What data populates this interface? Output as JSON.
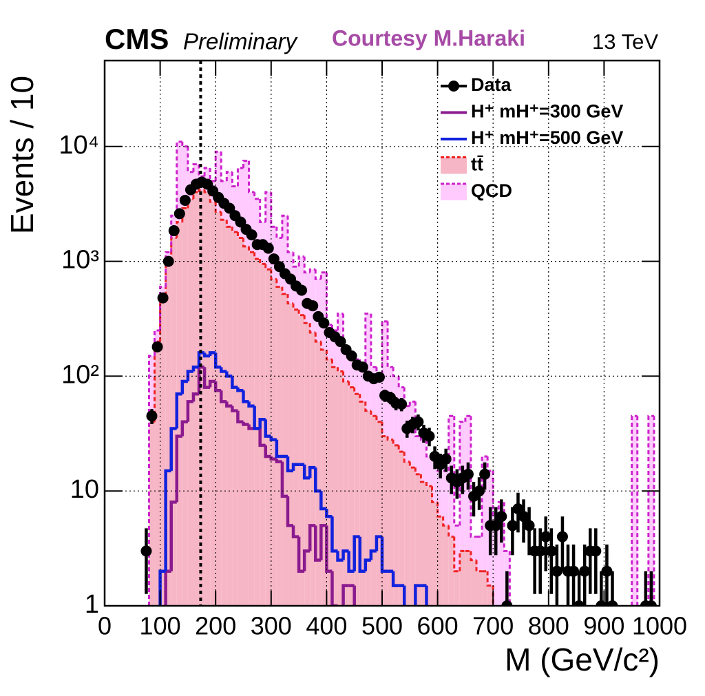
{
  "chart_data": {
    "type": "histogram",
    "experiment": "CMS",
    "status": "Preliminary",
    "credit": "Courtesy M.Haraki",
    "energy": "13 TeV",
    "x_label": "M (GeV/c²)",
    "y_label": "Events / 10",
    "log_y": true,
    "grid": true,
    "legend": "top right",
    "xlim": [
      0,
      1000
    ],
    "ylim": [
      1,
      56000
    ],
    "xticks": [
      0,
      100,
      200,
      300,
      400,
      500,
      600,
      700,
      800,
      900,
      1000
    ],
    "yticks": [
      1,
      10,
      {
        "value": 100,
        "label": "10²"
      },
      {
        "value": 1000,
        "label": "10³"
      },
      {
        "value": 10000,
        "label": "10⁴"
      }
    ],
    "reference_line_x": 173,
    "bins": [
      70,
      80,
      90,
      100,
      110,
      120,
      130,
      140,
      150,
      160,
      170,
      180,
      190,
      200,
      210,
      220,
      230,
      240,
      250,
      260,
      270,
      280,
      290,
      300,
      310,
      320,
      330,
      340,
      350,
      360,
      370,
      380,
      390,
      400,
      410,
      420,
      430,
      440,
      450,
      460,
      470,
      480,
      490,
      500,
      510,
      520,
      530,
      540,
      550,
      560,
      570,
      580,
      590,
      600,
      610,
      620,
      630,
      640,
      650,
      660,
      670,
      680,
      690,
      700,
      710,
      720,
      730,
      740,
      750,
      760,
      770,
      780,
      790,
      800,
      810,
      820,
      830,
      840,
      850,
      860,
      870,
      880,
      890,
      900,
      910,
      920,
      930,
      940,
      950,
      960,
      970,
      980,
      990,
      1000
    ],
    "series": [
      {
        "name": "tt̄",
        "style": "stack",
        "color": "#f7b6c6",
        "edge": "#ee2222",
        "values": [
          0,
          40,
          200,
          500,
          1000,
          1600,
          2200,
          2900,
          3500,
          4000,
          4200,
          4000,
          3300,
          2700,
          2300,
          2000,
          1800,
          1600,
          1350,
          1200,
          1050,
          950,
          850,
          700,
          600,
          520,
          430,
          380,
          340,
          290,
          240,
          200,
          170,
          140,
          120,
          110,
          90,
          80,
          70,
          60,
          50,
          45,
          40,
          30,
          28,
          25,
          22,
          18,
          16,
          14,
          12,
          11,
          8,
          6,
          5,
          4,
          2,
          3,
          3,
          2.5,
          2,
          2,
          1.5,
          0,
          0,
          0,
          0,
          0,
          0,
          0,
          0,
          0,
          0,
          0,
          0,
          0,
          0,
          0,
          0,
          0,
          0,
          0,
          0,
          0,
          0,
          0,
          0,
          0,
          0,
          0,
          0,
          0,
          0
        ]
      },
      {
        "name": "QCD",
        "style": "stack",
        "color": "#ffcbff",
        "edge": "#cc22cc",
        "values": [
          0,
          110,
          50,
          100,
          200,
          900,
          8800,
          7100,
          2500,
          3000,
          1300,
          2500,
          1700,
          6300,
          2700,
          4000,
          2700,
          4900,
          6150,
          2800,
          2450,
          1250,
          3150,
          1300,
          1000,
          1980,
          770,
          520,
          760,
          510,
          610,
          500,
          630,
          140,
          130,
          240,
          90,
          80,
          70,
          70,
          300,
          75,
          50,
          270,
          92,
          75,
          58,
          37,
          44,
          16,
          16,
          9,
          12,
          9,
          10,
          41,
          3,
          37,
          42,
          1.5,
          2,
          18,
          13.5,
          6,
          8,
          3,
          0,
          0,
          0,
          0,
          0,
          0,
          0,
          0,
          0,
          0,
          0,
          0,
          0,
          0,
          0,
          0,
          0,
          0,
          0,
          0,
          0,
          0,
          45,
          0,
          0,
          45,
          0
        ]
      },
      {
        "name": "H⁺ mH⁺=300 GeV",
        "style": "line",
        "color": "#8a1a8e",
        "values": [
          0,
          0,
          0,
          0,
          2,
          8,
          30,
          40,
          60,
          70,
          120,
          80,
          90,
          75,
          60,
          55,
          50,
          40,
          38,
          35,
          35,
          25,
          20,
          19,
          18,
          9,
          5,
          4,
          2,
          3,
          5,
          2.5,
          5,
          2,
          1,
          0,
          1.5,
          1.5,
          0,
          0,
          0,
          0,
          0,
          0,
          0,
          0,
          0,
          0,
          0,
          0,
          0,
          0,
          0,
          0,
          0,
          0,
          0,
          0,
          0,
          0,
          0,
          0,
          0,
          0,
          0,
          0,
          0,
          0,
          0,
          0,
          0,
          0,
          0,
          0,
          0,
          0,
          0,
          0,
          0,
          0,
          0,
          0,
          0,
          0,
          0,
          0,
          0,
          0,
          0,
          0,
          0,
          0,
          0
        ]
      },
      {
        "name": "H⁺ mH⁺=500 GeV",
        "style": "line",
        "color": "#1122dd",
        "values": [
          0,
          0,
          0,
          2,
          15,
          35,
          70,
          90,
          110,
          120,
          160,
          150,
          160,
          120,
          110,
          100,
          80,
          75,
          60,
          55,
          35,
          42,
          30,
          28,
          20,
          20,
          15,
          17,
          17,
          13,
          16,
          10,
          7,
          6,
          3,
          2.5,
          3,
          2,
          4,
          2,
          2.5,
          3,
          4,
          2,
          2,
          1.5,
          1.5,
          0,
          0,
          1.5,
          1.5,
          0,
          0,
          0,
          0,
          0,
          0,
          0,
          0,
          0,
          0,
          0,
          0,
          0,
          0,
          0,
          0,
          0,
          0,
          0,
          0,
          0,
          0,
          0,
          0,
          0,
          0,
          0,
          0,
          0,
          0,
          0,
          0,
          0,
          0,
          0,
          0,
          0,
          0,
          0,
          0,
          0,
          0
        ]
      },
      {
        "name": "Data",
        "style": "points",
        "color": "#000000",
        "values": [
          3,
          45,
          180,
          480,
          1000,
          1850,
          2600,
          3400,
          4200,
          4700,
          4900,
          4700,
          4100,
          3600,
          3200,
          2900,
          2500,
          2200,
          1900,
          1700,
          1400,
          1400,
          1300,
          1050,
          900,
          780,
          700,
          610,
          560,
          430,
          410,
          330,
          290,
          240,
          220,
          200,
          170,
          150,
          125,
          120,
          100,
          95,
          98,
          68,
          65,
          58,
          57,
          35,
          38,
          40,
          32,
          30,
          20,
          17,
          19,
          13,
          12,
          13,
          14,
          9,
          10,
          14,
          5,
          5,
          6,
          1,
          5,
          7,
          6,
          5,
          3,
          3,
          4,
          3,
          2,
          4,
          2,
          2,
          1,
          2,
          3,
          3,
          1,
          2,
          1,
          0,
          0,
          0,
          0,
          0,
          1,
          1,
          0
        ]
      }
    ]
  }
}
